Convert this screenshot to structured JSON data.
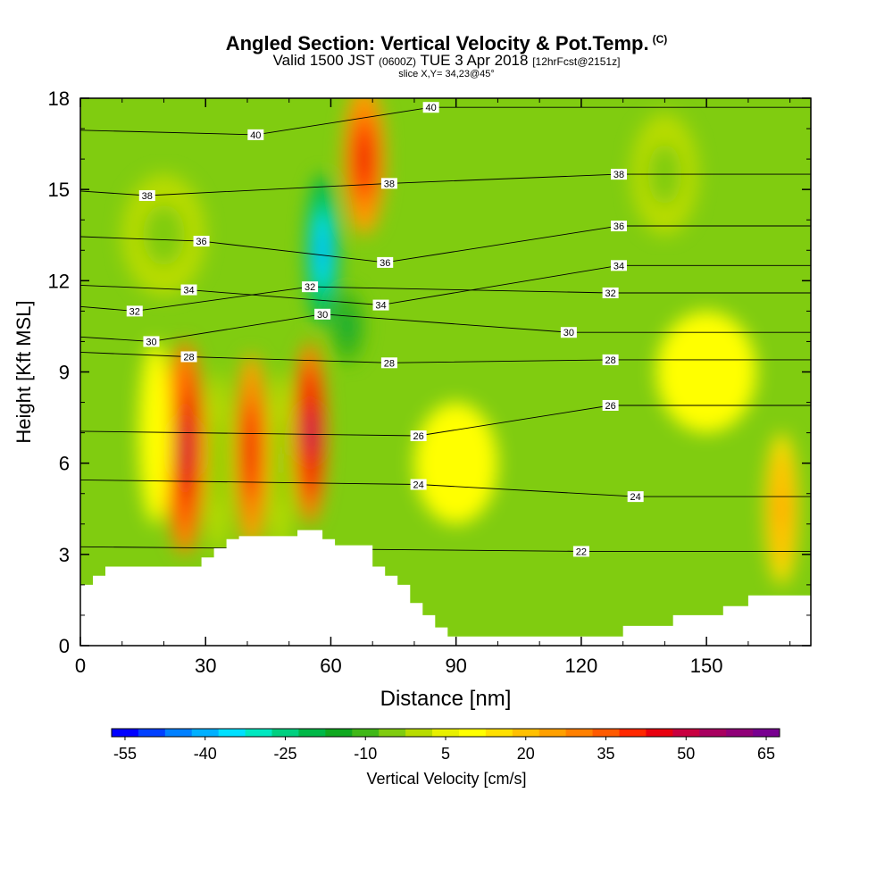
{
  "header": {
    "title": "Angled Section: Vertical Velocity & Pot.Temp.",
    "title_unit": "(C)",
    "valid_prefix": "Valid 1500 JST",
    "valid_utc": "(0600Z)",
    "valid_date": "TUE 3 Apr 2018",
    "forecast": "[12hrFcst@2151z]",
    "slice": "slice X,Y= 34,23@45°"
  },
  "colorbar": {
    "label": "Vertical Velocity [cm/s]",
    "tick_labels": [
      "-55",
      "-40",
      "-25",
      "-10",
      "5",
      "20",
      "35",
      "50",
      "65"
    ],
    "colors": [
      "#0000ff",
      "#0040ff",
      "#0080ff",
      "#00b0ff",
      "#00e0ff",
      "#00e8c0",
      "#00d080",
      "#00b848",
      "#10a820",
      "#40b818",
      "#80cc10",
      "#b8dc00",
      "#e8f000",
      "#ffff00",
      "#ffe000",
      "#ffc000",
      "#ffa000",
      "#ff8000",
      "#ff5a00",
      "#ff2800",
      "#e80010",
      "#c80040",
      "#a80060",
      "#900078",
      "#780090"
    ]
  },
  "chart_data": {
    "type": "heatmap",
    "xlabel": "Distance [nm]",
    "ylabel": "Height [Kft MSL]",
    "xlim": [
      0,
      175
    ],
    "ylim": [
      0,
      18
    ],
    "x_ticks": [
      "0",
      "30",
      "60",
      "90",
      "120",
      "150"
    ],
    "y_ticks": [
      "0",
      "3",
      "6",
      "9",
      "12",
      "15",
      "18"
    ],
    "background_color": "#80cc10",
    "terrain": [
      [
        0,
        0
      ],
      [
        0,
        2
      ],
      [
        3,
        2
      ],
      [
        3,
        2.3
      ],
      [
        6,
        2.3
      ],
      [
        6,
        2.6
      ],
      [
        9,
        2.6
      ],
      [
        9,
        2.6
      ],
      [
        26,
        2.6
      ],
      [
        26,
        2.6
      ],
      [
        29,
        2.6
      ],
      [
        29,
        2.9
      ],
      [
        32,
        2.9
      ],
      [
        32,
        3.2
      ],
      [
        35,
        3.2
      ],
      [
        35,
        3.5
      ],
      [
        38,
        3.5
      ],
      [
        38,
        3.6
      ],
      [
        52,
        3.6
      ],
      [
        52,
        3.8
      ],
      [
        58,
        3.8
      ],
      [
        58,
        3.5
      ],
      [
        61,
        3.5
      ],
      [
        61,
        3.3
      ],
      [
        70,
        3.3
      ],
      [
        70,
        2.6
      ],
      [
        73,
        2.6
      ],
      [
        73,
        2.3
      ],
      [
        76,
        2.3
      ],
      [
        76,
        2.0
      ],
      [
        79,
        2.0
      ],
      [
        79,
        1.4
      ],
      [
        82,
        1.4
      ],
      [
        82,
        1.0
      ],
      [
        85,
        1.0
      ],
      [
        85,
        0.6
      ],
      [
        88,
        0.6
      ],
      [
        88,
        0.3
      ],
      [
        130,
        0.3
      ],
      [
        130,
        0.65
      ],
      [
        142,
        0.65
      ],
      [
        142,
        1.0
      ],
      [
        154,
        1.0
      ],
      [
        154,
        1.3
      ],
      [
        160,
        1.3
      ],
      [
        160,
        1.65
      ],
      [
        175,
        1.65
      ],
      [
        175,
        0
      ]
    ],
    "velocity_features": [
      {
        "x": 25,
        "y": 6.5,
        "rx": 5,
        "ry": 3.5,
        "value": 45
      },
      {
        "x": 41,
        "y": 6.4,
        "rx": 4,
        "ry": 3.2,
        "value": 40
      },
      {
        "x": 55,
        "y": 7.0,
        "rx": 4,
        "ry": 3.0,
        "value": 50
      },
      {
        "x": 68,
        "y": 16.0,
        "rx": 5,
        "ry": 2.5,
        "value": 40
      },
      {
        "x": 58,
        "y": 13.0,
        "rx": 4,
        "ry": 2.5,
        "value": -45
      },
      {
        "x": 64,
        "y": 10.5,
        "rx": 4,
        "ry": 1.2,
        "value": -25
      },
      {
        "x": 18,
        "y": 7.0,
        "rx": 4,
        "ry": 3.0,
        "value": 5
      },
      {
        "x": 33,
        "y": 6.0,
        "rx": 3,
        "ry": 3.0,
        "value": -10
      },
      {
        "x": 48,
        "y": 6.0,
        "rx": 3,
        "ry": 3.0,
        "value": -10
      },
      {
        "x": 90,
        "y": 6.0,
        "rx": 10,
        "ry": 2.0,
        "value": 5
      },
      {
        "x": 150,
        "y": 9.0,
        "rx": 12,
        "ry": 2.0,
        "value": 5
      },
      {
        "x": 168,
        "y": 4.5,
        "rx": 4,
        "ry": 2.5,
        "value": 20
      },
      {
        "x": 140,
        "y": 15.5,
        "rx": 8,
        "ry": 2.0,
        "value": -10
      },
      {
        "x": 20,
        "y": 13.5,
        "rx": 10,
        "ry": 2.0,
        "value": -10
      }
    ],
    "isentrope_labels": [
      {
        "value": "40",
        "x": 42,
        "y": 16.8
      },
      {
        "value": "40",
        "x": 84,
        "y": 17.7
      },
      {
        "value": "38",
        "x": 16,
        "y": 14.8
      },
      {
        "value": "38",
        "x": 74,
        "y": 15.2
      },
      {
        "value": "38",
        "x": 129,
        "y": 15.5
      },
      {
        "value": "36",
        "x": 29,
        "y": 13.3
      },
      {
        "value": "36",
        "x": 73,
        "y": 12.6
      },
      {
        "value": "36",
        "x": 129,
        "y": 13.8
      },
      {
        "value": "34",
        "x": 26,
        "y": 11.7
      },
      {
        "value": "34",
        "x": 72,
        "y": 11.2
      },
      {
        "value": "34",
        "x": 129,
        "y": 12.5
      },
      {
        "value": "32",
        "x": 13,
        "y": 11.0
      },
      {
        "value": "32",
        "x": 55,
        "y": 11.8
      },
      {
        "value": "32",
        "x": 127,
        "y": 11.6
      },
      {
        "value": "30",
        "x": 17,
        "y": 10.0
      },
      {
        "value": "30",
        "x": 58,
        "y": 10.9
      },
      {
        "value": "30",
        "x": 117,
        "y": 10.3
      },
      {
        "value": "28",
        "x": 26,
        "y": 9.5
      },
      {
        "value": "28",
        "x": 74,
        "y": 9.3
      },
      {
        "value": "28",
        "x": 127,
        "y": 9.4
      },
      {
        "value": "26",
        "x": 81,
        "y": 6.9
      },
      {
        "value": "26",
        "x": 127,
        "y": 7.9
      },
      {
        "value": "24",
        "x": 81,
        "y": 5.3
      },
      {
        "value": "24",
        "x": 133,
        "y": 4.9
      },
      {
        "value": "22",
        "x": 120,
        "y": 3.1
      }
    ]
  }
}
